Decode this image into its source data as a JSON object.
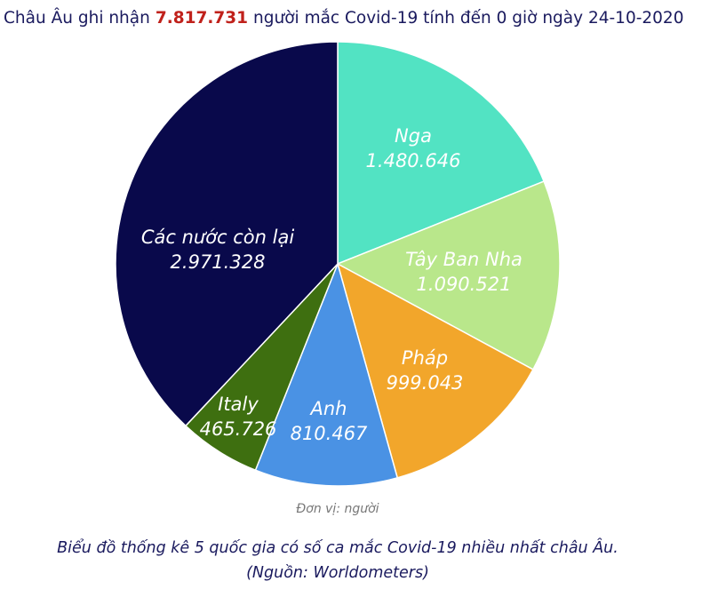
{
  "chart_data": {
    "type": "pie",
    "title_parts": [
      "Châu Âu ghi nhận",
      "7.817.731",
      "người mắc Covid-19 tính đến 0 giờ ngày 24-10-2020"
    ],
    "categories": [
      "Nga",
      "Tây Ban Nha",
      "Pháp",
      "Anh",
      "Italy",
      "Các nước còn lại"
    ],
    "values": [
      1480646,
      1090521,
      999043,
      810467,
      465726,
      2971328
    ],
    "value_labels": [
      "1.480.646",
      "1.090.521",
      "999.043",
      "810.467",
      "465.726",
      "2.971.328"
    ],
    "colors": [
      "#52e3c3",
      "#b9e78b",
      "#f2a62b",
      "#4a92e4",
      "#3e6f10",
      "#09094b"
    ],
    "unit_note": "Đơn vị: người",
    "caption": [
      "Biểu đồ thống kê 5 quốc gia có số ca mắc Covid-19 nhiều nhất châu Âu.",
      "(Nguồn: Worldometers)"
    ]
  }
}
